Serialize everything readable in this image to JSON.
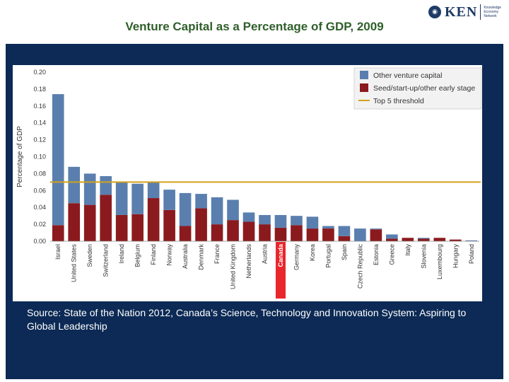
{
  "slide": {
    "title": "Venture Capital as a Percentage of GDP, 2009",
    "logo": {
      "word": "KEN",
      "tagline": "Knowledge Economy Network",
      "mark_color": "#1f3a66"
    },
    "source": "Source: State of the Nation 2012, Canada’s Science, Technology and Innovation System: Aspiring to Global Leadership",
    "colors": {
      "title": "#2f5f2a",
      "panel": "#0c2a55",
      "highlight": "#e8262c"
    }
  },
  "chart_data": {
    "type": "bar",
    "stacked": true,
    "ylabel": "Percentage of GDP",
    "ylim": [
      0,
      0.2
    ],
    "yticks": [
      "0.00",
      "0.02",
      "0.04",
      "0.06",
      "0.08",
      "0.10",
      "0.12",
      "0.14",
      "0.16",
      "0.18",
      "0.20"
    ],
    "categories": [
      "Israel",
      "United States",
      "Sweden",
      "Switzerland",
      "Ireland",
      "Belgium",
      "Finland",
      "Norway",
      "Australia",
      "Denmark",
      "France",
      "United Kingdom",
      "Netherlands",
      "Austria",
      "Canada",
      "Germany",
      "Korea",
      "Portugal",
      "Spain",
      "Czech Republic",
      "Estonia",
      "Greece",
      "Italy",
      "Slovenia",
      "Luxembourg",
      "Hungary",
      "Poland"
    ],
    "highlight_category": "Canada",
    "series": [
      {
        "name": "Seed/start-up/other early stage",
        "color": "#8b1a1f",
        "values": [
          0.019,
          0.045,
          0.043,
          0.055,
          0.031,
          0.032,
          0.051,
          0.037,
          0.018,
          0.039,
          0.02,
          0.025,
          0.023,
          0.02,
          0.016,
          0.019,
          0.015,
          0.015,
          0.006,
          0.0,
          0.014,
          0.003,
          0.004,
          0.003,
          0.004,
          0.002,
          0.0
        ]
      },
      {
        "name": "Other venture capital",
        "color": "#5a7fae",
        "values": [
          0.155,
          0.043,
          0.037,
          0.022,
          0.039,
          0.036,
          0.019,
          0.024,
          0.039,
          0.017,
          0.032,
          0.024,
          0.011,
          0.011,
          0.015,
          0.011,
          0.014,
          0.003,
          0.012,
          0.015,
          0.001,
          0.005,
          0.0,
          0.001,
          0.0,
          0.0,
          0.001
        ]
      }
    ],
    "threshold": {
      "name": "Top 5 threshold",
      "value": 0.07,
      "color": "#d4a21c"
    },
    "legend_position": "top-right",
    "grid": false
  }
}
